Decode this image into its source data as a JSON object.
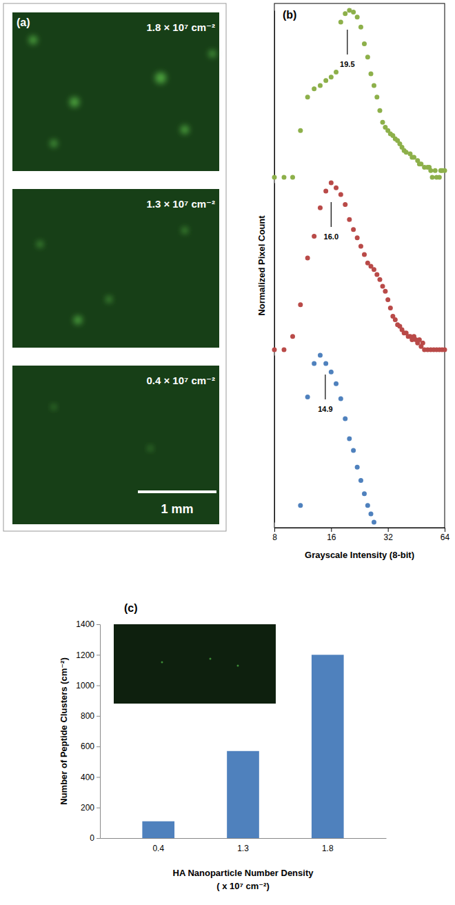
{
  "micrographs": {
    "panel_label": "(a)",
    "images": [
      {
        "label": "1.8 × 10⁷ cm⁻²"
      },
      {
        "label": "1.3 × 10⁷ cm⁻²"
      },
      {
        "label": "0.4 × 10⁷ cm⁻²"
      }
    ],
    "scale_bar": "1 mm"
  },
  "chart_data": [
    {
      "type": "scatter",
      "panel_label": "(b)",
      "x_label": "Grayscale Intensity (8-bit)",
      "y_label": "Normalized Pixel Count",
      "log": "x",
      "xlim": [
        8,
        64
      ],
      "xticks": [
        8,
        16,
        32,
        64
      ],
      "ylim": [
        0,
        1
      ],
      "yticks": [],
      "tick_labels": "x",
      "grid": false,
      "marker": "circle",
      "series": [
        {
          "color": "#8db04a",
          "x": [
            8,
            9,
            10,
            11,
            12,
            13,
            14,
            15,
            16,
            17,
            18,
            19,
            20,
            21,
            22,
            23,
            24,
            25,
            26,
            27,
            28,
            29,
            30,
            31,
            32,
            33,
            34,
            35,
            36,
            37,
            38,
            39,
            40,
            42,
            43,
            44,
            46,
            47,
            48,
            50,
            52,
            53,
            54,
            55,
            57,
            58,
            60,
            61,
            62,
            64
          ],
          "values": [
            0,
            0,
            0,
            0.28,
            0.48,
            0.53,
            0.55,
            0.58,
            0.6,
            0.63,
            0.93,
            0.98,
            1.0,
            0.99,
            0.96,
            0.9,
            0.8,
            0.72,
            0.62,
            0.55,
            0.48,
            0.4,
            0.33,
            0.3,
            0.28,
            0.26,
            0.25,
            0.23,
            0.22,
            0.2,
            0.18,
            0.16,
            0.15,
            0.14,
            0.12,
            0.12,
            0.1,
            0.08,
            0.08,
            0.06,
            0.06,
            0.06,
            0.04,
            0,
            0.04,
            0,
            0,
            0.04,
            0.04,
            0.04
          ],
          "peak": {
            "value": 19.5,
            "label": "19.5"
          }
        },
        {
          "color": "#b94a48",
          "x": [
            8,
            9,
            10,
            11,
            12,
            13,
            14,
            15,
            16,
            17,
            18,
            19,
            20,
            21,
            22,
            23,
            24,
            25,
            26,
            27,
            28,
            29,
            30,
            31,
            32,
            33,
            34,
            35,
            36,
            37,
            38,
            39,
            40,
            41,
            42,
            43,
            44,
            45,
            46,
            47,
            48,
            49,
            50,
            52,
            54,
            56,
            58,
            60,
            62,
            64
          ],
          "values": [
            0,
            0,
            0.08,
            0.27,
            0.55,
            0.68,
            0.85,
            0.95,
            1.0,
            0.97,
            0.93,
            0.87,
            0.78,
            0.72,
            0.67,
            0.62,
            0.57,
            0.52,
            0.5,
            0.48,
            0.45,
            0.42,
            0.38,
            0.35,
            0.3,
            0.25,
            0.2,
            0.18,
            0.15,
            0.14,
            0.12,
            0.1,
            0.1,
            0.08,
            0.08,
            0.06,
            0.08,
            0.06,
            0.04,
            0.06,
            0.02,
            0.04,
            0,
            0,
            0,
            0,
            0,
            0,
            0,
            0
          ],
          "peak": {
            "value": 16,
            "label": "16.0"
          }
        },
        {
          "color": "#4f81bd",
          "x": [
            11,
            12,
            13,
            14,
            15,
            16,
            17,
            18,
            19,
            20,
            21,
            22,
            23,
            24,
            25,
            26,
            27
          ],
          "values": [
            0.1,
            0.75,
            0.95,
            1.0,
            0.95,
            0.9,
            0.83,
            0.74,
            0.62,
            0.5,
            0.43,
            0.33,
            0.25,
            0.17,
            0.1,
            0.05,
            0
          ],
          "peak": {
            "value": 14.9,
            "label": "14.9"
          }
        }
      ]
    },
    {
      "type": "bar",
      "panel_label": "(c)",
      "x_label": "HA Nanoparticle Number Density\n( x 10⁷ cm⁻²)",
      "y_label": "Number of Peptide Clusters (cm⁻²)",
      "categories": [
        "0.4",
        "1.3",
        "1.8"
      ],
      "values": [
        110,
        570,
        1200
      ],
      "color": "#4f81bd",
      "ylim": [
        0,
        1400
      ],
      "yticks": [
        0,
        200,
        400,
        600,
        800,
        1000,
        1200,
        1400
      ],
      "grid": false
    }
  ]
}
